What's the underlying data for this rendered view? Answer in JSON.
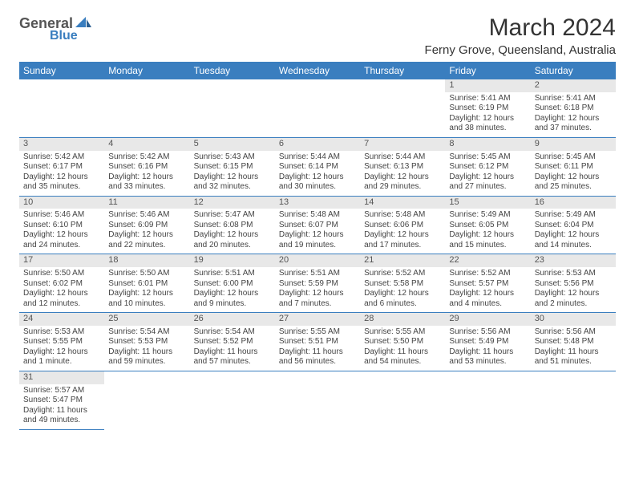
{
  "logo": {
    "word1": "General",
    "word2": "Blue"
  },
  "title": "March 2024",
  "location": "Ferny Grove, Queensland, Australia",
  "dayHeaders": [
    "Sunday",
    "Monday",
    "Tuesday",
    "Wednesday",
    "Thursday",
    "Friday",
    "Saturday"
  ],
  "colors": {
    "headerBg": "#3a7ebf",
    "headerText": "#ffffff",
    "daynumBg": "#e8e8e8",
    "cellBorder": "#3a7ebf",
    "bodyText": "#444444"
  },
  "weeks": [
    [
      {
        "empty": true
      },
      {
        "empty": true
      },
      {
        "empty": true
      },
      {
        "empty": true
      },
      {
        "empty": true
      },
      {
        "n": "1",
        "sr": "Sunrise: 5:41 AM",
        "ss": "Sunset: 6:19 PM",
        "d1": "Daylight: 12 hours",
        "d2": "and 38 minutes."
      },
      {
        "n": "2",
        "sr": "Sunrise: 5:41 AM",
        "ss": "Sunset: 6:18 PM",
        "d1": "Daylight: 12 hours",
        "d2": "and 37 minutes."
      }
    ],
    [
      {
        "n": "3",
        "sr": "Sunrise: 5:42 AM",
        "ss": "Sunset: 6:17 PM",
        "d1": "Daylight: 12 hours",
        "d2": "and 35 minutes."
      },
      {
        "n": "4",
        "sr": "Sunrise: 5:42 AM",
        "ss": "Sunset: 6:16 PM",
        "d1": "Daylight: 12 hours",
        "d2": "and 33 minutes."
      },
      {
        "n": "5",
        "sr": "Sunrise: 5:43 AM",
        "ss": "Sunset: 6:15 PM",
        "d1": "Daylight: 12 hours",
        "d2": "and 32 minutes."
      },
      {
        "n": "6",
        "sr": "Sunrise: 5:44 AM",
        "ss": "Sunset: 6:14 PM",
        "d1": "Daylight: 12 hours",
        "d2": "and 30 minutes."
      },
      {
        "n": "7",
        "sr": "Sunrise: 5:44 AM",
        "ss": "Sunset: 6:13 PM",
        "d1": "Daylight: 12 hours",
        "d2": "and 29 minutes."
      },
      {
        "n": "8",
        "sr": "Sunrise: 5:45 AM",
        "ss": "Sunset: 6:12 PM",
        "d1": "Daylight: 12 hours",
        "d2": "and 27 minutes."
      },
      {
        "n": "9",
        "sr": "Sunrise: 5:45 AM",
        "ss": "Sunset: 6:11 PM",
        "d1": "Daylight: 12 hours",
        "d2": "and 25 minutes."
      }
    ],
    [
      {
        "n": "10",
        "sr": "Sunrise: 5:46 AM",
        "ss": "Sunset: 6:10 PM",
        "d1": "Daylight: 12 hours",
        "d2": "and 24 minutes."
      },
      {
        "n": "11",
        "sr": "Sunrise: 5:46 AM",
        "ss": "Sunset: 6:09 PM",
        "d1": "Daylight: 12 hours",
        "d2": "and 22 minutes."
      },
      {
        "n": "12",
        "sr": "Sunrise: 5:47 AM",
        "ss": "Sunset: 6:08 PM",
        "d1": "Daylight: 12 hours",
        "d2": "and 20 minutes."
      },
      {
        "n": "13",
        "sr": "Sunrise: 5:48 AM",
        "ss": "Sunset: 6:07 PM",
        "d1": "Daylight: 12 hours",
        "d2": "and 19 minutes."
      },
      {
        "n": "14",
        "sr": "Sunrise: 5:48 AM",
        "ss": "Sunset: 6:06 PM",
        "d1": "Daylight: 12 hours",
        "d2": "and 17 minutes."
      },
      {
        "n": "15",
        "sr": "Sunrise: 5:49 AM",
        "ss": "Sunset: 6:05 PM",
        "d1": "Daylight: 12 hours",
        "d2": "and 15 minutes."
      },
      {
        "n": "16",
        "sr": "Sunrise: 5:49 AM",
        "ss": "Sunset: 6:04 PM",
        "d1": "Daylight: 12 hours",
        "d2": "and 14 minutes."
      }
    ],
    [
      {
        "n": "17",
        "sr": "Sunrise: 5:50 AM",
        "ss": "Sunset: 6:02 PM",
        "d1": "Daylight: 12 hours",
        "d2": "and 12 minutes."
      },
      {
        "n": "18",
        "sr": "Sunrise: 5:50 AM",
        "ss": "Sunset: 6:01 PM",
        "d1": "Daylight: 12 hours",
        "d2": "and 10 minutes."
      },
      {
        "n": "19",
        "sr": "Sunrise: 5:51 AM",
        "ss": "Sunset: 6:00 PM",
        "d1": "Daylight: 12 hours",
        "d2": "and 9 minutes."
      },
      {
        "n": "20",
        "sr": "Sunrise: 5:51 AM",
        "ss": "Sunset: 5:59 PM",
        "d1": "Daylight: 12 hours",
        "d2": "and 7 minutes."
      },
      {
        "n": "21",
        "sr": "Sunrise: 5:52 AM",
        "ss": "Sunset: 5:58 PM",
        "d1": "Daylight: 12 hours",
        "d2": "and 6 minutes."
      },
      {
        "n": "22",
        "sr": "Sunrise: 5:52 AM",
        "ss": "Sunset: 5:57 PM",
        "d1": "Daylight: 12 hours",
        "d2": "and 4 minutes."
      },
      {
        "n": "23",
        "sr": "Sunrise: 5:53 AM",
        "ss": "Sunset: 5:56 PM",
        "d1": "Daylight: 12 hours",
        "d2": "and 2 minutes."
      }
    ],
    [
      {
        "n": "24",
        "sr": "Sunrise: 5:53 AM",
        "ss": "Sunset: 5:55 PM",
        "d1": "Daylight: 12 hours",
        "d2": "and 1 minute."
      },
      {
        "n": "25",
        "sr": "Sunrise: 5:54 AM",
        "ss": "Sunset: 5:53 PM",
        "d1": "Daylight: 11 hours",
        "d2": "and 59 minutes."
      },
      {
        "n": "26",
        "sr": "Sunrise: 5:54 AM",
        "ss": "Sunset: 5:52 PM",
        "d1": "Daylight: 11 hours",
        "d2": "and 57 minutes."
      },
      {
        "n": "27",
        "sr": "Sunrise: 5:55 AM",
        "ss": "Sunset: 5:51 PM",
        "d1": "Daylight: 11 hours",
        "d2": "and 56 minutes."
      },
      {
        "n": "28",
        "sr": "Sunrise: 5:55 AM",
        "ss": "Sunset: 5:50 PM",
        "d1": "Daylight: 11 hours",
        "d2": "and 54 minutes."
      },
      {
        "n": "29",
        "sr": "Sunrise: 5:56 AM",
        "ss": "Sunset: 5:49 PM",
        "d1": "Daylight: 11 hours",
        "d2": "and 53 minutes."
      },
      {
        "n": "30",
        "sr": "Sunrise: 5:56 AM",
        "ss": "Sunset: 5:48 PM",
        "d1": "Daylight: 11 hours",
        "d2": "and 51 minutes."
      }
    ],
    [
      {
        "n": "31",
        "sr": "Sunrise: 5:57 AM",
        "ss": "Sunset: 5:47 PM",
        "d1": "Daylight: 11 hours",
        "d2": "and 49 minutes."
      },
      {
        "empty": true
      },
      {
        "empty": true
      },
      {
        "empty": true
      },
      {
        "empty": true
      },
      {
        "empty": true
      },
      {
        "empty": true
      }
    ]
  ]
}
